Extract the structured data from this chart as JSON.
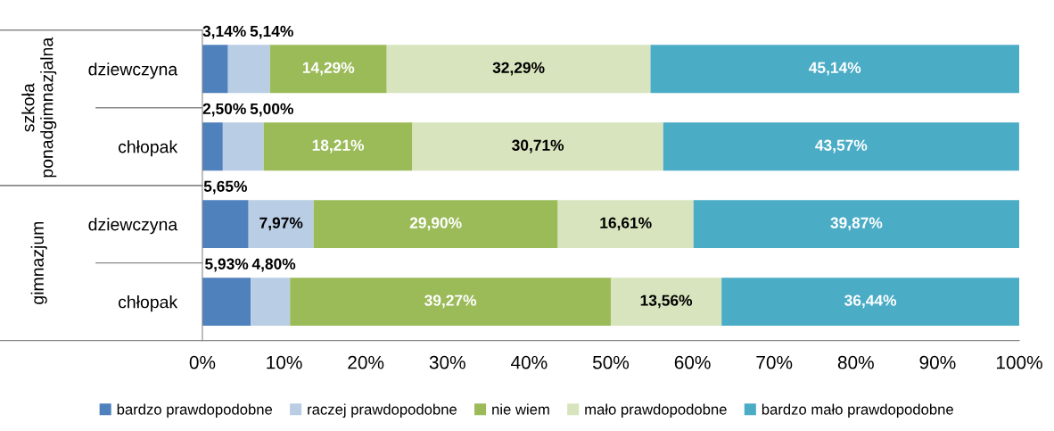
{
  "chart_data": {
    "type": "bar",
    "orientation": "horizontal",
    "stacked": true,
    "categories": [
      "dziewczyna",
      "chłopak",
      "dziewczyna",
      "chłopak"
    ],
    "annotations": [
      "szkoła\nponadgimnazjalna",
      "gimnazjum"
    ],
    "series": [
      {
        "name": "bardzo prawdopodobne",
        "color": "#4f81bd",
        "values": [
          3.14,
          2.5,
          5.65,
          5.93
        ],
        "value_labels": [
          "3,14%",
          "2,50%",
          "5,65%",
          "5,93%"
        ]
      },
      {
        "name": "raczej prawdopodobne",
        "color": "#b9cde5",
        "values": [
          5.14,
          5.0,
          7.97,
          4.8
        ],
        "value_labels": [
          "5,14%",
          "5,00%",
          "7,97%",
          "4,80%"
        ]
      },
      {
        "name": "nie wiem",
        "color": "#9bbb59",
        "values": [
          14.29,
          18.21,
          29.9,
          39.27
        ],
        "value_labels": [
          "14,29%",
          "18,21%",
          "29,90%",
          "39,27%"
        ]
      },
      {
        "name": "mało prawdopodobne",
        "color": "#d7e4bd",
        "values": [
          32.29,
          30.71,
          16.61,
          13.56
        ],
        "value_labels": [
          "32,29%",
          "30,71%",
          "16,61%",
          "13,56%"
        ]
      },
      {
        "name": "bardzo mało prawdopodobne",
        "color": "#4bacc6",
        "values": [
          45.14,
          43.57,
          39.87,
          36.44
        ],
        "value_labels": [
          "45,14%",
          "43,57%",
          "39,87%",
          "36,44%"
        ]
      }
    ],
    "xlim": [
      0,
      100
    ],
    "xticks": [
      {
        "value": 0,
        "label": "0%"
      },
      {
        "value": 10,
        "label": "10%"
      },
      {
        "value": 20,
        "label": "20%"
      },
      {
        "value": 30,
        "label": "30%"
      },
      {
        "value": 40,
        "label": "40%"
      },
      {
        "value": 50,
        "label": "50%"
      },
      {
        "value": 60,
        "label": "60%"
      },
      {
        "value": 70,
        "label": "70%"
      },
      {
        "value": 80,
        "label": "80%"
      },
      {
        "value": 90,
        "label": "90%"
      },
      {
        "value": 100,
        "label": "100%"
      }
    ],
    "grid": false,
    "legend": "bottom"
  }
}
